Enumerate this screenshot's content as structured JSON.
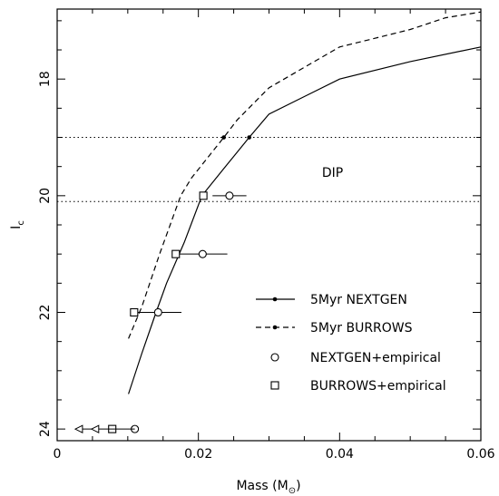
{
  "chart_data": {
    "type": "line",
    "title": "",
    "xlabel": {
      "text": "Mass (M",
      "sub": "⊙",
      "close": ")"
    },
    "ylabel": {
      "text": "I",
      "sub": "c"
    },
    "xlim": [
      0,
      0.06
    ],
    "ylim": [
      24.2,
      16.8
    ],
    "y_inverted": true,
    "x_ticks": [
      0,
      0.02,
      0.04,
      0.06
    ],
    "x_tick_labels": [
      "0",
      "0.02",
      "0.04",
      "0.06"
    ],
    "y_ticks": [
      18,
      20,
      22,
      24
    ],
    "y_tick_labels": [
      "18",
      "20",
      "22",
      "24"
    ],
    "grid": false,
    "legend_placement": "bottom-right",
    "hlines": [
      19.0,
      20.1
    ],
    "annotations": [
      {
        "text": "DIP",
        "x": 0.039,
        "y": 19.6
      }
    ],
    "series": [
      {
        "name": "5Myr NEXTGEN",
        "style": "solid",
        "points": [
          [
            0.0101,
            23.4
          ],
          [
            0.012,
            22.7
          ],
          [
            0.014,
            22.0
          ],
          [
            0.0155,
            21.5
          ],
          [
            0.018,
            20.8
          ],
          [
            0.0205,
            20.0
          ],
          [
            0.0235,
            19.55
          ],
          [
            0.0272,
            19.0
          ],
          [
            0.03,
            18.6
          ],
          [
            0.035,
            18.3
          ],
          [
            0.04,
            18.0
          ],
          [
            0.05,
            17.7
          ],
          [
            0.06,
            17.45
          ]
        ],
        "markers": [
          [
            0.0272,
            19.0
          ]
        ]
      },
      {
        "name": "5Myr BURROWS",
        "style": "dashed",
        "points": [
          [
            0.0101,
            22.45
          ],
          [
            0.012,
            21.9
          ],
          [
            0.0145,
            21.0
          ],
          [
            0.0175,
            20.0
          ],
          [
            0.019,
            19.7
          ],
          [
            0.0236,
            19.0
          ],
          [
            0.0255,
            18.7
          ],
          [
            0.03,
            18.15
          ],
          [
            0.035,
            17.8
          ],
          [
            0.04,
            17.45
          ],
          [
            0.045,
            17.3
          ],
          [
            0.05,
            17.15
          ],
          [
            0.055,
            16.95
          ],
          [
            0.06,
            16.85
          ]
        ],
        "markers": [
          [
            0.0236,
            19.0
          ]
        ]
      }
    ],
    "point_sets": [
      {
        "name": "NEXTGEN+empirical",
        "marker": "circle",
        "points": [
          {
            "x": 0.0244,
            "y": 20.0,
            "xerr": [
              0.0024,
              0.0024
            ]
          },
          {
            "x": 0.0206,
            "y": 21.0,
            "xerr": [
              0.0035,
              0.0035
            ]
          },
          {
            "x": 0.0143,
            "y": 22.0,
            "xerr": [
              0.0033,
              0.0033
            ]
          },
          {
            "x": 0.011,
            "y": 24.0,
            "xerr": [
              0,
              0
            ]
          }
        ]
      },
      {
        "name": "BURROWS+empirical",
        "marker": "square",
        "points": [
          {
            "x": 0.0207,
            "y": 20.0,
            "xerr": [
              0,
              0
            ]
          },
          {
            "x": 0.0168,
            "y": 21.0,
            "xerr": [
              0,
              0
            ]
          },
          {
            "x": 0.0109,
            "y": 22.0,
            "xerr": [
              0,
              0
            ]
          },
          {
            "x": 0.0078,
            "y": 24.0,
            "xerr": [
              0,
              0
            ]
          }
        ]
      }
    ],
    "upper_limits": [
      {
        "x": 0.0055,
        "y": 24.0
      },
      {
        "x": 0.0032,
        "y": 24.0
      }
    ]
  }
}
